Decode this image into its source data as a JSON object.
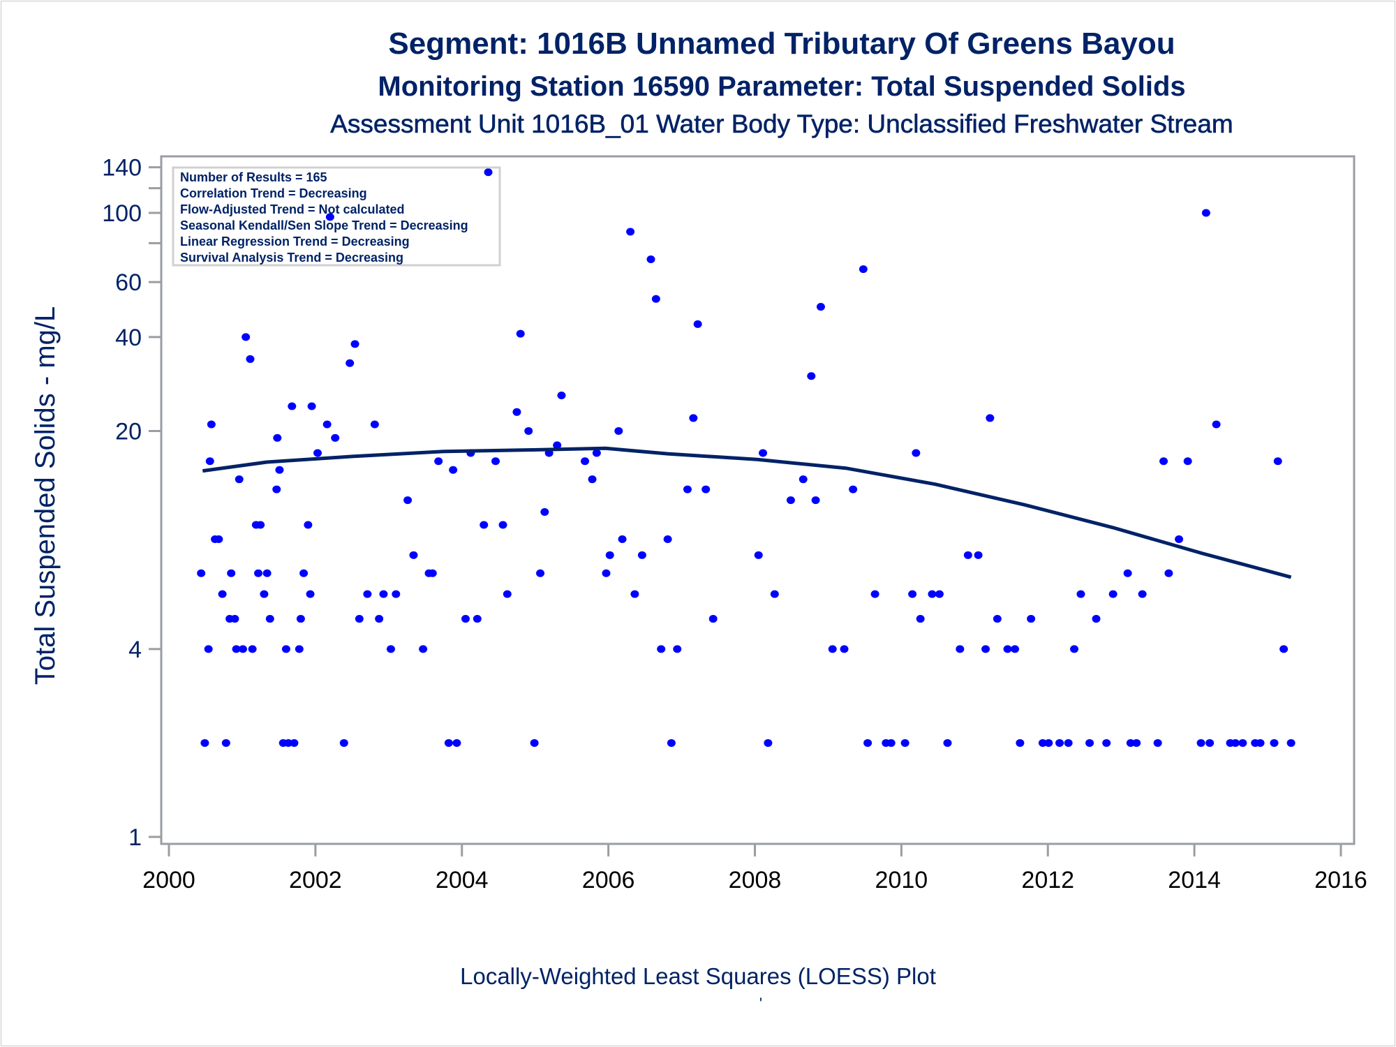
{
  "chart_data": {
    "type": "scatter",
    "title": "Segment: 1016B  Unnamed Tributary Of Greens Bayou",
    "subtitle": "Monitoring Station 16590 Parameter: Total Suspended Solids",
    "subtitle2": "Assessment Unit 1016B_01   Water Body Type: Unclassified Freshwater Stream",
    "xlabel": "",
    "ylabel": "Total Suspended Solids - mg/L",
    "caption": "Locally-Weighted Least Squares (LOESS) Plot",
    "caption_mark": "'",
    "xlim": [
      2000,
      2016
    ],
    "ylim": [
      1,
      140
    ],
    "yscale": "log",
    "x_ticks": [
      2000,
      2002,
      2004,
      2006,
      2008,
      2010,
      2012,
      2014,
      2016
    ],
    "y_ticks": [
      1,
      4,
      20,
      40,
      60,
      80,
      100,
      120,
      140
    ],
    "y_tick_labels": [
      "1",
      "4",
      "20",
      "40",
      "60",
      "",
      "100",
      "",
      "140"
    ],
    "grid": false,
    "annotations": {
      "placement": "top-left",
      "lines": [
        "Number of Results = 165",
        "Correlation Trend = Decreasing",
        "Flow-Adjusted Trend = Not calculated",
        "Seasonal Kendall/Sen Slope Trend = Decreasing",
        "Linear Regression Trend = Decreasing",
        "Survival Analysis Trend = Decreasing"
      ]
    },
    "colors": {
      "points": "#0000ff",
      "loess": "#002266",
      "text": "#002266",
      "axis": "#9a9da3"
    },
    "series": [
      {
        "name": "Observations",
        "type": "scatter",
        "points": [
          [
            2000.44,
            7
          ],
          [
            2000.49,
            2
          ],
          [
            2000.54,
            4
          ],
          [
            2000.56,
            16
          ],
          [
            2000.58,
            21
          ],
          [
            2000.63,
            9
          ],
          [
            2000.68,
            9
          ],
          [
            2000.73,
            6
          ],
          [
            2000.78,
            2
          ],
          [
            2000.83,
            5
          ],
          [
            2000.85,
            7
          ],
          [
            2000.9,
            5
          ],
          [
            2000.92,
            4
          ],
          [
            2000.96,
            14
          ],
          [
            2001.01,
            4
          ],
          [
            2001.05,
            40
          ],
          [
            2001.11,
            34
          ],
          [
            2001.14,
            4
          ],
          [
            2001.19,
            10
          ],
          [
            2001.25,
            10
          ],
          [
            2001.22,
            7
          ],
          [
            2001.3,
            6
          ],
          [
            2001.34,
            7
          ],
          [
            2001.38,
            5
          ],
          [
            2001.47,
            13
          ],
          [
            2001.48,
            19
          ],
          [
            2001.51,
            15
          ],
          [
            2001.56,
            2
          ],
          [
            2001.6,
            4
          ],
          [
            2001.63,
            2
          ],
          [
            2001.68,
            24
          ],
          [
            2001.71,
            2
          ],
          [
            2001.78,
            4
          ],
          [
            2001.8,
            5
          ],
          [
            2001.84,
            7
          ],
          [
            2001.9,
            10
          ],
          [
            2001.93,
            6
          ],
          [
            2001.95,
            24
          ],
          [
            2002.03,
            17
          ],
          [
            2002.16,
            21
          ],
          [
            2002.2,
            97
          ],
          [
            2002.27,
            19
          ],
          [
            2002.39,
            2
          ],
          [
            2002.47,
            33
          ],
          [
            2002.54,
            38
          ],
          [
            2002.6,
            5
          ],
          [
            2002.71,
            6
          ],
          [
            2002.81,
            21
          ],
          [
            2002.87,
            5
          ],
          [
            2002.93,
            6
          ],
          [
            2003.03,
            4
          ],
          [
            2003.1,
            6
          ],
          [
            2003.26,
            12
          ],
          [
            2003.34,
            8
          ],
          [
            2003.47,
            4
          ],
          [
            2003.55,
            7
          ],
          [
            2003.6,
            7
          ],
          [
            2003.68,
            16
          ],
          [
            2003.82,
            2
          ],
          [
            2003.88,
            15
          ],
          [
            2003.93,
            2
          ],
          [
            2004.05,
            5
          ],
          [
            2004.12,
            17
          ],
          [
            2004.21,
            5
          ],
          [
            2004.3,
            10
          ],
          [
            2004.36,
            135
          ],
          [
            2004.46,
            16
          ],
          [
            2004.56,
            10
          ],
          [
            2004.62,
            6
          ],
          [
            2004.75,
            23
          ],
          [
            2004.8,
            41
          ],
          [
            2004.91,
            20
          ],
          [
            2004.99,
            2
          ],
          [
            2005.07,
            7
          ],
          [
            2005.13,
            11
          ],
          [
            2005.19,
            17
          ],
          [
            2005.3,
            18
          ],
          [
            2005.36,
            26
          ],
          [
            2005.68,
            16
          ],
          [
            2005.78,
            14
          ],
          [
            2005.84,
            17
          ],
          [
            2005.97,
            7
          ],
          [
            2006.02,
            8
          ],
          [
            2006.14,
            20
          ],
          [
            2006.19,
            9
          ],
          [
            2006.3,
            87
          ],
          [
            2006.36,
            6
          ],
          [
            2006.46,
            8
          ],
          [
            2006.58,
            71
          ],
          [
            2006.65,
            53
          ],
          [
            2006.72,
            4
          ],
          [
            2006.81,
            9
          ],
          [
            2006.86,
            2
          ],
          [
            2006.94,
            4
          ],
          [
            2007.08,
            13
          ],
          [
            2007.16,
            22
          ],
          [
            2007.22,
            44
          ],
          [
            2007.33,
            13
          ],
          [
            2007.43,
            5
          ],
          [
            2008.05,
            8
          ],
          [
            2008.11,
            17
          ],
          [
            2008.18,
            2
          ],
          [
            2008.27,
            6
          ],
          [
            2008.49,
            12
          ],
          [
            2008.66,
            14
          ],
          [
            2008.77,
            30
          ],
          [
            2008.83,
            12
          ],
          [
            2008.9,
            50
          ],
          [
            2009.06,
            4
          ],
          [
            2009.22,
            4
          ],
          [
            2009.34,
            13
          ],
          [
            2009.48,
            66
          ],
          [
            2009.54,
            2
          ],
          [
            2009.64,
            6
          ],
          [
            2009.79,
            2
          ],
          [
            2009.86,
            2
          ],
          [
            2010.05,
            2
          ],
          [
            2010.15,
            6
          ],
          [
            2010.2,
            17
          ],
          [
            2010.26,
            5
          ],
          [
            2010.42,
            6
          ],
          [
            2010.52,
            6
          ],
          [
            2010.63,
            2
          ],
          [
            2010.8,
            4
          ],
          [
            2010.91,
            8
          ],
          [
            2011.05,
            8
          ],
          [
            2011.15,
            4
          ],
          [
            2011.21,
            22
          ],
          [
            2011.31,
            5
          ],
          [
            2011.45,
            4
          ],
          [
            2011.55,
            4
          ],
          [
            2011.62,
            2
          ],
          [
            2011.77,
            5
          ],
          [
            2011.93,
            2
          ],
          [
            2012.01,
            2
          ],
          [
            2012.16,
            2
          ],
          [
            2012.28,
            2
          ],
          [
            2012.36,
            4
          ],
          [
            2012.45,
            6
          ],
          [
            2012.57,
            2
          ],
          [
            2012.66,
            5
          ],
          [
            2012.8,
            2
          ],
          [
            2012.89,
            6
          ],
          [
            2013.09,
            7
          ],
          [
            2013.13,
            2
          ],
          [
            2013.21,
            2
          ],
          [
            2013.29,
            6
          ],
          [
            2013.5,
            2
          ],
          [
            2013.58,
            16
          ],
          [
            2013.65,
            7
          ],
          [
            2013.79,
            9
          ],
          [
            2013.91,
            16
          ],
          [
            2014.09,
            2
          ],
          [
            2014.16,
            100
          ],
          [
            2014.21,
            2
          ],
          [
            2014.3,
            21
          ],
          [
            2014.49,
            2
          ],
          [
            2014.56,
            2
          ],
          [
            2014.66,
            2
          ],
          [
            2014.83,
            2
          ],
          [
            2014.9,
            2
          ],
          [
            2015.09,
            2
          ],
          [
            2015.14,
            16
          ],
          [
            2015.22,
            4
          ],
          [
            2015.32,
            2
          ]
        ]
      },
      {
        "name": "LOESS",
        "type": "line",
        "points": [
          [
            2000.46,
            14.9
          ],
          [
            2001.34,
            15.9
          ],
          [
            2002.55,
            16.6
          ],
          [
            2003.77,
            17.2
          ],
          [
            2004.98,
            17.4
          ],
          [
            2005.96,
            17.6
          ],
          [
            2006.81,
            16.9
          ],
          [
            2008.03,
            16.2
          ],
          [
            2009.24,
            15.2
          ],
          [
            2010.46,
            13.5
          ],
          [
            2011.68,
            11.6
          ],
          [
            2012.89,
            9.8
          ],
          [
            2014.11,
            8.1
          ],
          [
            2015.32,
            6.8
          ]
        ]
      }
    ]
  }
}
